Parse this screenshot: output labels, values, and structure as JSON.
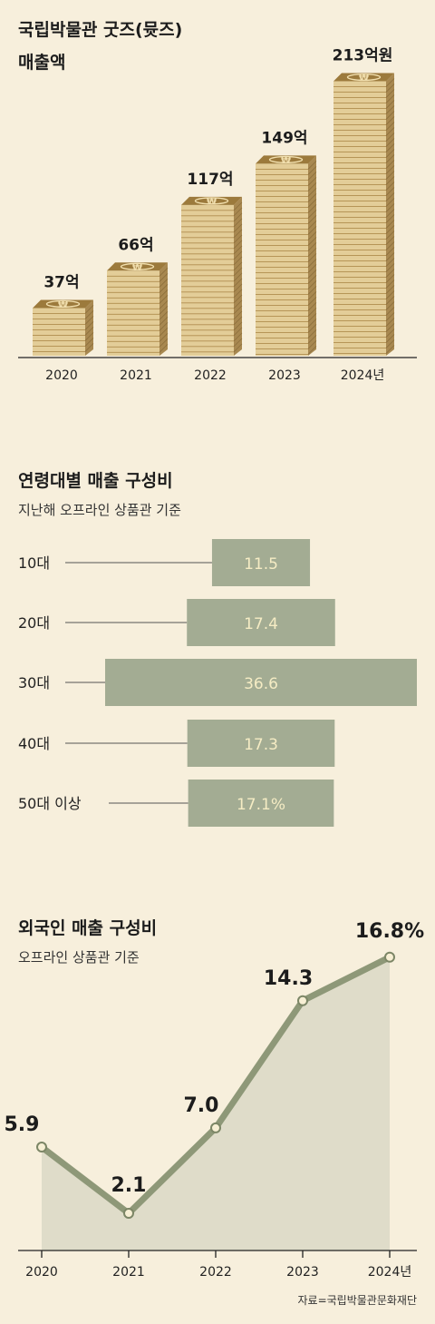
{
  "chart_data": [
    {
      "type": "bar",
      "title": "국립박물관 굿즈(뮷즈)",
      "subtitle": "매출액",
      "categories": [
        "2020",
        "2021",
        "2022",
        "2023",
        "2024년"
      ],
      "values": [
        37,
        66,
        117,
        149,
        213
      ],
      "value_labels": [
        "37억",
        "66억",
        "117억",
        "149억",
        "213억원"
      ],
      "unit": "억원"
    },
    {
      "type": "bar",
      "orientation": "horizontal",
      "title": "연령대별 매출 구성비",
      "subtitle": "지난해 오프라인 상품관 기준",
      "categories": [
        "10대",
        "20대",
        "30대",
        "40대",
        "50대 이상"
      ],
      "values": [
        11.5,
        17.4,
        36.6,
        17.3,
        17.1
      ],
      "value_labels": [
        "11.5",
        "17.4",
        "36.6",
        "17.3",
        "17.1%"
      ],
      "unit": "%"
    },
    {
      "type": "area",
      "title": "외국인 매출 구성비",
      "subtitle": "오프라인 상품관 기준",
      "x": [
        "2020",
        "2021",
        "2022",
        "2023",
        "2024년"
      ],
      "values": [
        5.9,
        2.1,
        7.0,
        14.3,
        16.8
      ],
      "value_labels": [
        "5.9",
        "2.1",
        "7.0",
        "14.3",
        "16.8%"
      ],
      "unit": "%"
    }
  ],
  "source": "자료=국립박물관문화재단",
  "colors": {
    "background": "#f7efdc",
    "coin_face": "#e3cd98",
    "coin_edge": "#cdb076",
    "coin_stripe": "#b08d4e",
    "coin_side": "#a88850",
    "coin_top": "#9c7a3c",
    "hbar": "#a3ac93",
    "hbar_text": "#f5ecc4",
    "line": "#8e9878",
    "area": "#dfdcc9",
    "dot_fill": "#f7efd4"
  }
}
